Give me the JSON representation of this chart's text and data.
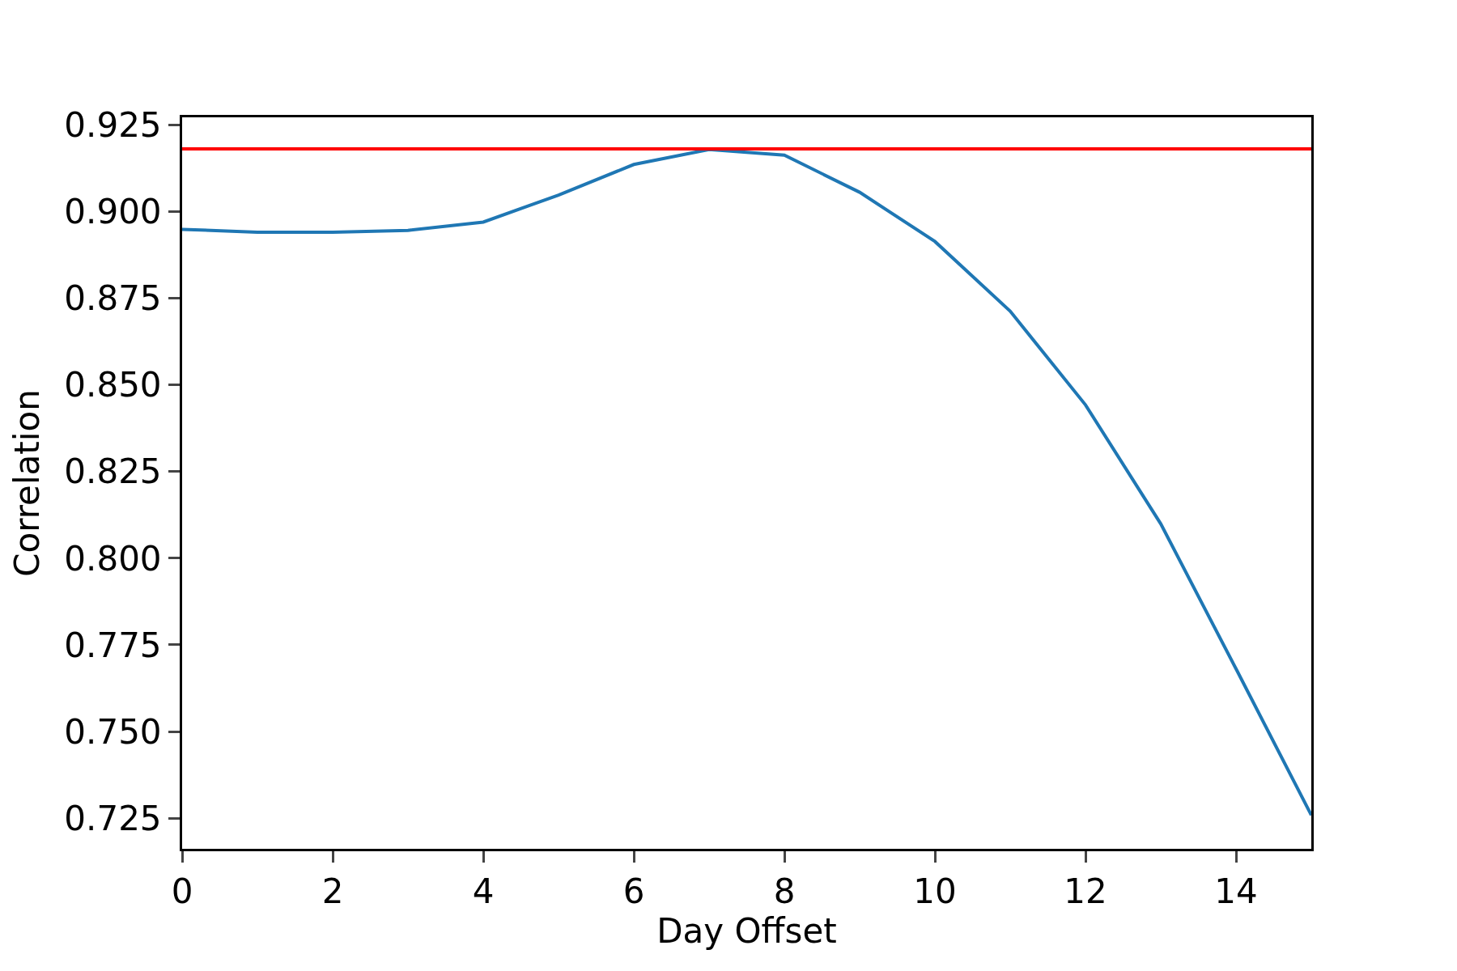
{
  "chart_data": {
    "type": "line",
    "xlabel": "Day Offset",
    "ylabel": "Correlation",
    "x": [
      0,
      1,
      2,
      3,
      4,
      5,
      6,
      7,
      8,
      9,
      10,
      11,
      12,
      13,
      14,
      15
    ],
    "series": [
      {
        "color": "#1f77b4",
        "values": [
          0.8948,
          0.894,
          0.894,
          0.8945,
          0.8969,
          0.9047,
          0.9135,
          0.9178,
          0.9162,
          0.9055,
          0.8913,
          0.8712,
          0.8442,
          0.8099,
          0.7681,
          0.7259
        ]
      }
    ],
    "ref_lines": [
      {
        "axis": "y",
        "value": 0.918,
        "color": "#ff0000",
        "line_style": "solid"
      }
    ],
    "xlim": [
      0,
      15
    ],
    "xticks": [
      0,
      2,
      4,
      6,
      8,
      10,
      12,
      14
    ],
    "ylim": [
      0.7162,
      0.9271
    ],
    "yticks": [
      {
        "value": 0.725,
        "label": "0.725"
      },
      {
        "value": 0.75,
        "label": "0.750"
      },
      {
        "value": 0.775,
        "label": "0.775"
      },
      {
        "value": 0.8,
        "label": "0.800"
      },
      {
        "value": 0.825,
        "label": "0.825"
      },
      {
        "value": 0.85,
        "label": "0.850"
      },
      {
        "value": 0.875,
        "label": "0.875"
      },
      {
        "value": 0.9,
        "label": "0.900"
      },
      {
        "value": 0.925,
        "label": "0.925"
      }
    ],
    "marker": "none",
    "line_style": "solid"
  }
}
